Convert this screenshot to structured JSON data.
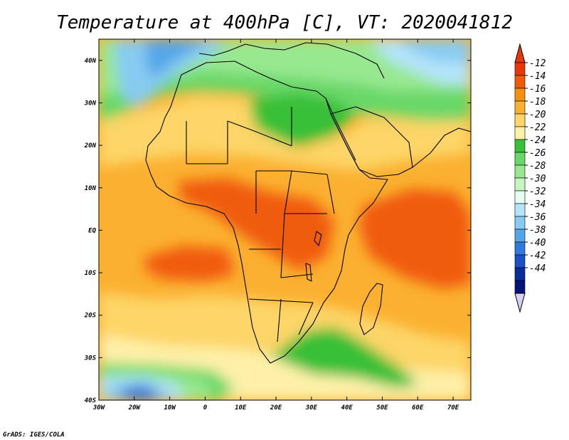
{
  "title": "Temperature at 400hPa [C], VT: 2020041812",
  "credit": "GrADS: IGES/COLA",
  "chart_data": {
    "type": "heatmap",
    "variable": "Temperature at 400hPa",
    "units": "C",
    "valid_time": "2020041812",
    "xlim": [
      -30,
      75
    ],
    "ylim": [
      -40,
      45
    ],
    "x_ticks": [
      {
        "value": -30,
        "label": "30W"
      },
      {
        "value": -20,
        "label": "20W"
      },
      {
        "value": -10,
        "label": "10W"
      },
      {
        "value": 0,
        "label": "0"
      },
      {
        "value": 10,
        "label": "10E"
      },
      {
        "value": 20,
        "label": "20E"
      },
      {
        "value": 30,
        "label": "30E"
      },
      {
        "value": 40,
        "label": "40E"
      },
      {
        "value": 50,
        "label": "50E"
      },
      {
        "value": 60,
        "label": "60E"
      },
      {
        "value": 70,
        "label": "70E"
      }
    ],
    "y_ticks": [
      {
        "value": 40,
        "label": "40N"
      },
      {
        "value": 30,
        "label": "30N"
      },
      {
        "value": 20,
        "label": "20N"
      },
      {
        "value": 10,
        "label": "10N"
      },
      {
        "value": 0,
        "label": "EQ"
      },
      {
        "value": -10,
        "label": "10S"
      },
      {
        "value": -20,
        "label": "20S"
      },
      {
        "value": -30,
        "label": "30S"
      },
      {
        "value": -40,
        "label": "40S"
      }
    ],
    "colorbar": {
      "labels": [
        "-12",
        "-14",
        "-16",
        "-18",
        "-20",
        "-22",
        "-24",
        "-26",
        "-28",
        "-30",
        "-32",
        "-34",
        "-36",
        "-38",
        "-40",
        "-42",
        "-44"
      ],
      "colors": [
        "#e8380a",
        "#f05b0a",
        "#f8900f",
        "#fbb030",
        "#fdd568",
        "#fef0a8",
        "#38c038",
        "#68d868",
        "#98e890",
        "#c6f5c0",
        "#e6fff5",
        "#b4e4fa",
        "#88cbf2",
        "#55a6e8",
        "#3378dc",
        "#1a50c8",
        "#0a2c9c",
        "#06137a"
      ],
      "top_arrow_color": "#e8380a",
      "bottom_arrow_color": "#d8d0f2"
    }
  },
  "colors": {
    "ocean": "#fbb030",
    "frame": "#000000",
    "coast": "#000000"
  }
}
